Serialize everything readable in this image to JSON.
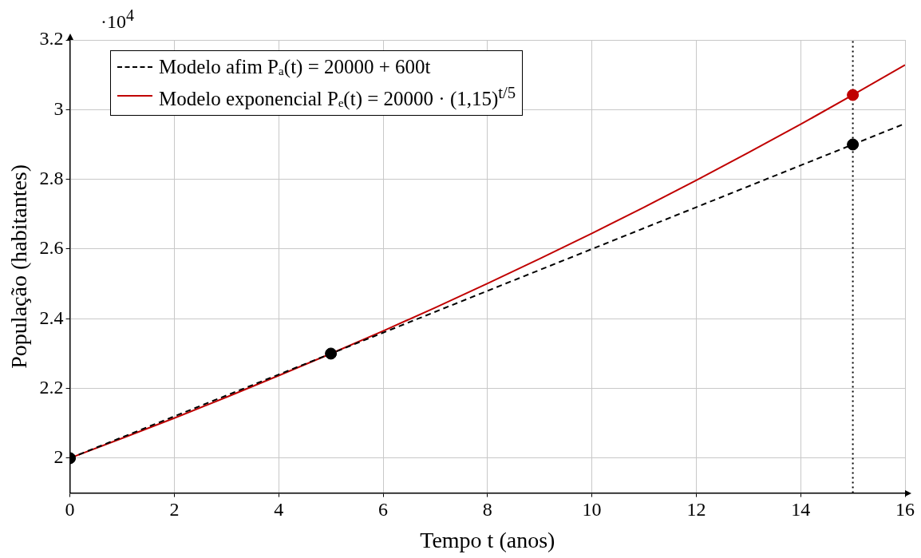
{
  "chart_data": {
    "type": "line",
    "xlabel": "Tempo t (anos)",
    "ylabel": "População (habitantes)",
    "annotations": [
      "·10$^{4}$"
    ],
    "xlim": [
      0,
      16
    ],
    "xticks": [
      0,
      2,
      4,
      6,
      8,
      10,
      12,
      14,
      16
    ],
    "ylim": [
      1.9,
      3.2
    ],
    "yticks": [
      2,
      2.2,
      2.4,
      2.6,
      2.8,
      3,
      3.2
    ],
    "grid": true,
    "legend": "top left",
    "ref_lines": [
      {
        "axis": "x",
        "value": 15,
        "color": "#000000",
        "line_style": "dotted"
      }
    ],
    "series": [
      {
        "name": "Modelo afim Pₐ(t) = 20000 + 600t",
        "type": "line",
        "color": "#000000",
        "line_style": "dashed",
        "marker": "none",
        "x": [
          0,
          2,
          4,
          6,
          8,
          10,
          12,
          14,
          16
        ],
        "values": [
          2.0,
          2.12,
          2.24,
          2.36,
          2.48,
          2.6,
          2.72,
          2.84,
          2.96
        ]
      },
      {
        "name": "Modelo exponencial Pₑ(t) = 20000 · (1,15)$^{t/5}$",
        "type": "line",
        "color": "#c00000",
        "line_style": "solid",
        "marker": "none",
        "x": [
          0,
          1,
          2,
          3,
          4,
          5,
          6,
          7,
          8,
          9,
          10,
          11,
          12,
          13,
          14,
          15,
          16
        ],
        "values": [
          2.0,
          2.057,
          2.115,
          2.175,
          2.237,
          2.3,
          2.365,
          2.432,
          2.501,
          2.572,
          2.645,
          2.72,
          2.797,
          2.877,
          2.958,
          3.042,
          3.128
        ]
      },
      {
        "type": "scatter",
        "color": "#000000",
        "marker": "circle",
        "x": [
          0,
          5,
          15
        ],
        "values": [
          2.0,
          2.3,
          2.9
        ]
      },
      {
        "type": "scatter",
        "color": "#c00000",
        "marker": "circle",
        "x": [
          15
        ],
        "values": [
          3.042
        ]
      }
    ]
  }
}
